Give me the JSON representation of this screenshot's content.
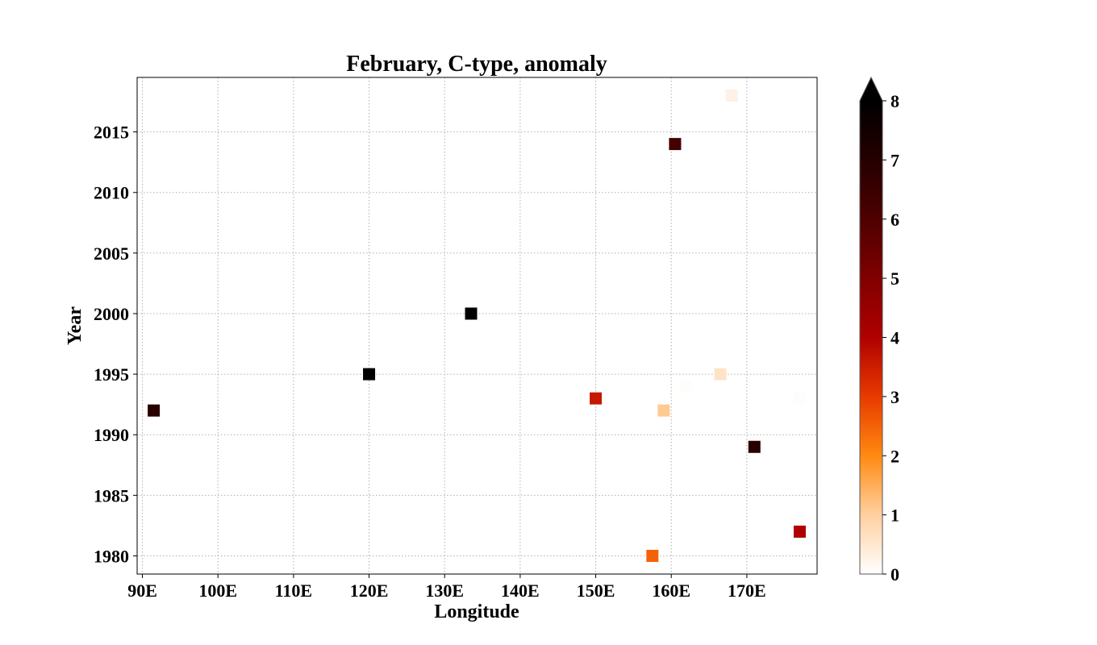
{
  "chart_data": {
    "type": "scatter",
    "title": "February, C-type, anomaly",
    "xlabel": "Longitude",
    "ylabel": "Year",
    "xlim": [
      89.3,
      179.3
    ],
    "ylim": [
      1978.5,
      2019.5
    ],
    "xticks": [
      90,
      100,
      110,
      120,
      130,
      140,
      150,
      160,
      170
    ],
    "xtick_labels": [
      "90E",
      "100E",
      "110E",
      "120E",
      "130E",
      "140E",
      "150E",
      "160E",
      "170E"
    ],
    "yticks": [
      1980,
      1985,
      1990,
      1995,
      2000,
      2005,
      2010,
      2015
    ],
    "ytick_labels": [
      "1980",
      "1985",
      "1990",
      "1995",
      "2000",
      "2005",
      "2010",
      "2015"
    ],
    "grid": true,
    "marker": "square",
    "colormap": "gist_heat_r",
    "colorbar": {
      "min": 0,
      "max": 8,
      "extend": "max",
      "ticks": [
        0,
        1,
        2,
        3,
        4,
        5,
        6,
        7,
        8
      ],
      "tick_labels": [
        "0",
        "1",
        "2",
        "3",
        "4",
        "5",
        "6",
        "7",
        "8"
      ]
    },
    "points": [
      {
        "x": 91.5,
        "y": 1992,
        "value": 6.9
      },
      {
        "x": 120.0,
        "y": 1995,
        "value": 8.2
      },
      {
        "x": 133.5,
        "y": 2000,
        "value": 8.5
      },
      {
        "x": 150.0,
        "y": 1993,
        "value": 3.6
      },
      {
        "x": 157.5,
        "y": 1980,
        "value": 2.5
      },
      {
        "x": 159.0,
        "y": 1992,
        "value": 1.1
      },
      {
        "x": 160.5,
        "y": 2014,
        "value": 6.3
      },
      {
        "x": 162.0,
        "y": 1994,
        "value": 0.05
      },
      {
        "x": 166.5,
        "y": 1995,
        "value": 0.6
      },
      {
        "x": 168.0,
        "y": 2018,
        "value": 0.3
      },
      {
        "x": 171.0,
        "y": 1989,
        "value": 6.9
      },
      {
        "x": 177.0,
        "y": 1982,
        "value": 4.0
      },
      {
        "x": 177.0,
        "y": 1993,
        "value": 0.05
      }
    ]
  }
}
